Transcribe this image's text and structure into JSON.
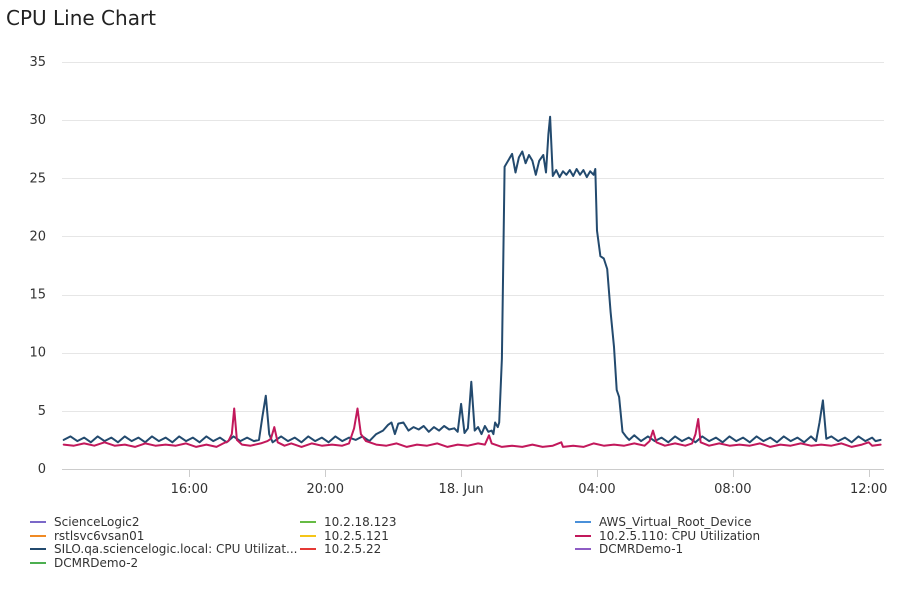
{
  "chart_data": {
    "type": "line",
    "title": "CPU Line Chart",
    "xlabel": "",
    "ylabel": "",
    "ylim": [
      0,
      35
    ],
    "yticks": [
      0,
      5,
      10,
      15,
      20,
      25,
      30,
      35
    ],
    "xlim": [
      12.25,
      36.45
    ],
    "xticks": [
      {
        "value": 16,
        "label": "16:00"
      },
      {
        "value": 20,
        "label": "20:00"
      },
      {
        "value": 24,
        "label": "18. Jun"
      },
      {
        "value": 28,
        "label": "04:00"
      },
      {
        "value": 32,
        "label": "08:00"
      },
      {
        "value": 36,
        "label": "12:00"
      }
    ],
    "grid": true,
    "legend_position": "bottom",
    "legend": [
      {
        "name": "ScienceLogic2",
        "color": "#7b68c8"
      },
      {
        "name": "10.2.18.123",
        "color": "#66bb44"
      },
      {
        "name": "AWS_Virtual_Root_Device",
        "color": "#4a90d9"
      },
      {
        "name": "rstlsvc6vsan01",
        "color": "#f08a24"
      },
      {
        "name": "10.2.5.121",
        "color": "#f5c518"
      },
      {
        "name": "10.2.5.110: CPU Utilization",
        "color": "#c2185b"
      },
      {
        "name": "SILO.qa.sciencelogic.local: CPU Utilizat...",
        "color": "#234a6e"
      },
      {
        "name": "10.2.5.22",
        "color": "#e53935"
      },
      {
        "name": "DCMRDemo-1",
        "color": "#8e5cc4"
      },
      {
        "name": "DCMRDemo-2",
        "color": "#4caf50"
      }
    ],
    "series": [
      {
        "name": "SILO.qa.sciencelogic.local: CPU Utilizat...",
        "color": "#234a6e",
        "points": [
          [
            12.3,
            2.5
          ],
          [
            12.5,
            2.8
          ],
          [
            12.7,
            2.4
          ],
          [
            12.9,
            2.7
          ],
          [
            13.1,
            2.3
          ],
          [
            13.3,
            2.8
          ],
          [
            13.5,
            2.4
          ],
          [
            13.7,
            2.7
          ],
          [
            13.9,
            2.3
          ],
          [
            14.1,
            2.8
          ],
          [
            14.3,
            2.4
          ],
          [
            14.5,
            2.7
          ],
          [
            14.7,
            2.3
          ],
          [
            14.9,
            2.8
          ],
          [
            15.1,
            2.4
          ],
          [
            15.3,
            2.7
          ],
          [
            15.5,
            2.3
          ],
          [
            15.7,
            2.8
          ],
          [
            15.9,
            2.4
          ],
          [
            16.1,
            2.7
          ],
          [
            16.3,
            2.3
          ],
          [
            16.5,
            2.8
          ],
          [
            16.7,
            2.4
          ],
          [
            16.9,
            2.7
          ],
          [
            17.1,
            2.3
          ],
          [
            17.3,
            2.8
          ],
          [
            17.5,
            2.4
          ],
          [
            17.7,
            2.7
          ],
          [
            17.9,
            2.4
          ],
          [
            18.05,
            2.5
          ],
          [
            18.15,
            4.5
          ],
          [
            18.25,
            6.3
          ],
          [
            18.35,
            3.0
          ],
          [
            18.45,
            2.3
          ],
          [
            18.7,
            2.8
          ],
          [
            18.9,
            2.4
          ],
          [
            19.1,
            2.7
          ],
          [
            19.3,
            2.3
          ],
          [
            19.5,
            2.8
          ],
          [
            19.7,
            2.4
          ],
          [
            19.9,
            2.7
          ],
          [
            20.1,
            2.3
          ],
          [
            20.3,
            2.8
          ],
          [
            20.5,
            2.4
          ],
          [
            20.7,
            2.7
          ],
          [
            20.9,
            2.5
          ],
          [
            21.1,
            2.8
          ],
          [
            21.3,
            2.4
          ],
          [
            21.5,
            3.0
          ],
          [
            21.7,
            3.3
          ],
          [
            21.85,
            3.8
          ],
          [
            21.95,
            4.0
          ],
          [
            22.05,
            3.0
          ],
          [
            22.15,
            3.9
          ],
          [
            22.3,
            4.0
          ],
          [
            22.45,
            3.3
          ],
          [
            22.6,
            3.6
          ],
          [
            22.75,
            3.4
          ],
          [
            22.9,
            3.7
          ],
          [
            23.05,
            3.2
          ],
          [
            23.2,
            3.6
          ],
          [
            23.35,
            3.3
          ],
          [
            23.5,
            3.7
          ],
          [
            23.65,
            3.4
          ],
          [
            23.8,
            3.5
          ],
          [
            23.9,
            3.2
          ],
          [
            24.0,
            5.6
          ],
          [
            24.1,
            3.1
          ],
          [
            24.2,
            3.5
          ],
          [
            24.3,
            7.5
          ],
          [
            24.4,
            3.3
          ],
          [
            24.5,
            3.6
          ],
          [
            24.6,
            3.0
          ],
          [
            24.7,
            3.7
          ],
          [
            24.8,
            3.2
          ],
          [
            24.9,
            3.3
          ],
          [
            24.95,
            3.0
          ],
          [
            25.0,
            4.0
          ],
          [
            25.08,
            3.6
          ],
          [
            25.12,
            4.0
          ],
          [
            25.2,
            9.5
          ],
          [
            25.28,
            26.0
          ],
          [
            25.4,
            26.6
          ],
          [
            25.5,
            27.1
          ],
          [
            25.6,
            25.5
          ],
          [
            25.7,
            26.8
          ],
          [
            25.8,
            27.3
          ],
          [
            25.9,
            26.3
          ],
          [
            26.0,
            27.0
          ],
          [
            26.1,
            26.5
          ],
          [
            26.2,
            25.3
          ],
          [
            26.3,
            26.5
          ],
          [
            26.42,
            27.0
          ],
          [
            26.5,
            25.5
          ],
          [
            26.57,
            28.8
          ],
          [
            26.62,
            30.3
          ],
          [
            26.7,
            25.2
          ],
          [
            26.8,
            25.7
          ],
          [
            26.9,
            25.1
          ],
          [
            27.0,
            25.6
          ],
          [
            27.1,
            25.3
          ],
          [
            27.2,
            25.7
          ],
          [
            27.3,
            25.2
          ],
          [
            27.4,
            25.8
          ],
          [
            27.5,
            25.3
          ],
          [
            27.6,
            25.7
          ],
          [
            27.7,
            25.1
          ],
          [
            27.8,
            25.6
          ],
          [
            27.9,
            25.3
          ],
          [
            27.95,
            25.8
          ],
          [
            28.0,
            20.5
          ],
          [
            28.1,
            18.3
          ],
          [
            28.2,
            18.1
          ],
          [
            28.3,
            17.2
          ],
          [
            28.4,
            13.5
          ],
          [
            28.5,
            10.5
          ],
          [
            28.58,
            6.8
          ],
          [
            28.65,
            6.2
          ],
          [
            28.75,
            3.2
          ],
          [
            28.85,
            2.8
          ],
          [
            28.95,
            2.5
          ],
          [
            29.1,
            2.9
          ],
          [
            29.3,
            2.4
          ],
          [
            29.5,
            2.8
          ],
          [
            29.7,
            2.4
          ],
          [
            29.9,
            2.7
          ],
          [
            30.1,
            2.3
          ],
          [
            30.3,
            2.8
          ],
          [
            30.5,
            2.4
          ],
          [
            30.7,
            2.7
          ],
          [
            30.9,
            2.3
          ],
          [
            31.1,
            2.8
          ],
          [
            31.3,
            2.4
          ],
          [
            31.5,
            2.7
          ],
          [
            31.7,
            2.3
          ],
          [
            31.9,
            2.8
          ],
          [
            32.1,
            2.4
          ],
          [
            32.3,
            2.7
          ],
          [
            32.5,
            2.3
          ],
          [
            32.7,
            2.8
          ],
          [
            32.9,
            2.4
          ],
          [
            33.1,
            2.7
          ],
          [
            33.3,
            2.3
          ],
          [
            33.5,
            2.8
          ],
          [
            33.7,
            2.4
          ],
          [
            33.9,
            2.7
          ],
          [
            34.1,
            2.3
          ],
          [
            34.3,
            2.8
          ],
          [
            34.45,
            2.4
          ],
          [
            34.55,
            4.0
          ],
          [
            34.65,
            5.9
          ],
          [
            34.75,
            2.6
          ],
          [
            34.9,
            2.8
          ],
          [
            35.1,
            2.4
          ],
          [
            35.3,
            2.7
          ],
          [
            35.5,
            2.3
          ],
          [
            35.7,
            2.8
          ],
          [
            35.9,
            2.4
          ],
          [
            36.1,
            2.7
          ],
          [
            36.2,
            2.4
          ],
          [
            36.35,
            2.5
          ]
        ]
      },
      {
        "name": "10.2.5.110: CPU Utilization",
        "color": "#c2185b",
        "points": [
          [
            12.3,
            2.1
          ],
          [
            12.6,
            2.0
          ],
          [
            12.9,
            2.2
          ],
          [
            13.2,
            2.0
          ],
          [
            13.5,
            2.3
          ],
          [
            13.8,
            2.0
          ],
          [
            14.1,
            2.1
          ],
          [
            14.4,
            1.9
          ],
          [
            14.7,
            2.2
          ],
          [
            15.0,
            2.0
          ],
          [
            15.3,
            2.1
          ],
          [
            15.6,
            2.0
          ],
          [
            15.9,
            2.2
          ],
          [
            16.2,
            1.9
          ],
          [
            16.5,
            2.1
          ],
          [
            16.8,
            1.9
          ],
          [
            17.0,
            2.2
          ],
          [
            17.15,
            2.4
          ],
          [
            17.25,
            3.0
          ],
          [
            17.32,
            5.2
          ],
          [
            17.4,
            2.5
          ],
          [
            17.55,
            2.1
          ],
          [
            17.8,
            2.0
          ],
          [
            18.1,
            2.2
          ],
          [
            18.3,
            2.4
          ],
          [
            18.4,
            2.6
          ],
          [
            18.5,
            3.6
          ],
          [
            18.6,
            2.3
          ],
          [
            18.8,
            2.0
          ],
          [
            19.0,
            2.2
          ],
          [
            19.3,
            1.9
          ],
          [
            19.6,
            2.2
          ],
          [
            19.9,
            2.0
          ],
          [
            20.2,
            2.1
          ],
          [
            20.5,
            2.0
          ],
          [
            20.7,
            2.2
          ],
          [
            20.85,
            3.5
          ],
          [
            20.95,
            5.2
          ],
          [
            21.05,
            3.0
          ],
          [
            21.2,
            2.4
          ],
          [
            21.5,
            2.1
          ],
          [
            21.8,
            2.0
          ],
          [
            22.1,
            2.2
          ],
          [
            22.4,
            1.9
          ],
          [
            22.7,
            2.1
          ],
          [
            23.0,
            2.0
          ],
          [
            23.3,
            2.2
          ],
          [
            23.6,
            1.9
          ],
          [
            23.9,
            2.1
          ],
          [
            24.2,
            2.0
          ],
          [
            24.5,
            2.2
          ],
          [
            24.7,
            2.1
          ],
          [
            24.82,
            2.9
          ],
          [
            24.9,
            2.2
          ],
          [
            25.2,
            1.9
          ],
          [
            25.5,
            2.0
          ],
          [
            25.8,
            1.9
          ],
          [
            26.1,
            2.1
          ],
          [
            26.4,
            1.9
          ],
          [
            26.7,
            2.0
          ],
          [
            26.95,
            2.3
          ],
          [
            27.0,
            1.9
          ],
          [
            27.3,
            2.0
          ],
          [
            27.6,
            1.9
          ],
          [
            27.9,
            2.2
          ],
          [
            28.2,
            2.0
          ],
          [
            28.5,
            2.1
          ],
          [
            28.8,
            2.0
          ],
          [
            29.1,
            2.2
          ],
          [
            29.4,
            2.0
          ],
          [
            29.55,
            2.4
          ],
          [
            29.65,
            3.3
          ],
          [
            29.75,
            2.3
          ],
          [
            30.0,
            2.0
          ],
          [
            30.3,
            2.2
          ],
          [
            30.6,
            2.0
          ],
          [
            30.8,
            2.2
          ],
          [
            30.9,
            3.0
          ],
          [
            30.98,
            4.3
          ],
          [
            31.05,
            2.3
          ],
          [
            31.3,
            2.0
          ],
          [
            31.6,
            2.2
          ],
          [
            31.9,
            2.0
          ],
          [
            32.2,
            2.1
          ],
          [
            32.5,
            2.0
          ],
          [
            32.8,
            2.2
          ],
          [
            33.1,
            1.9
          ],
          [
            33.4,
            2.1
          ],
          [
            33.7,
            2.0
          ],
          [
            34.0,
            2.2
          ],
          [
            34.3,
            2.0
          ],
          [
            34.6,
            2.1
          ],
          [
            34.9,
            2.0
          ],
          [
            35.2,
            2.2
          ],
          [
            35.5,
            1.9
          ],
          [
            35.8,
            2.1
          ],
          [
            36.0,
            2.3
          ],
          [
            36.1,
            2.0
          ],
          [
            36.35,
            2.1
          ]
        ]
      }
    ]
  }
}
